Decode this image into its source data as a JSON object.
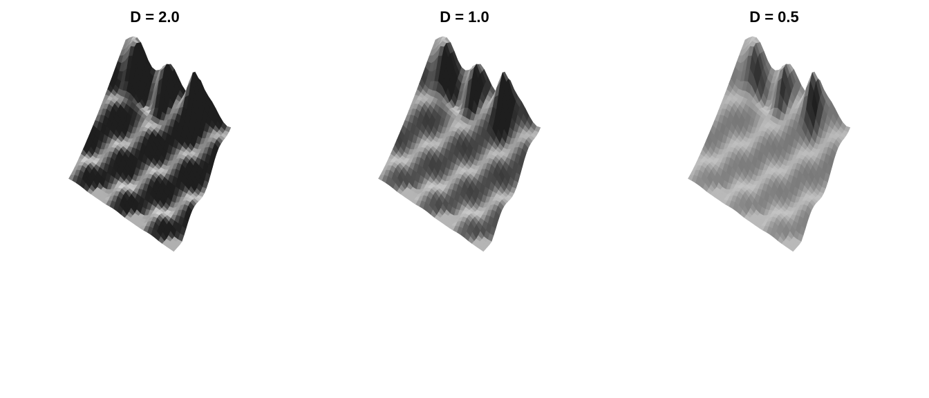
{
  "chart_data": [
    {
      "type": "surface",
      "title": "D = 2.0",
      "shading": "grayscale",
      "background": "#ffffff",
      "grid": false,
      "legend": "none"
    },
    {
      "type": "surface",
      "title": "D = 1.0",
      "shading": "grayscale",
      "background": "#ffffff",
      "grid": false,
      "legend": "none"
    },
    {
      "type": "surface",
      "title": "D = 0.5",
      "shading": "grayscale",
      "background": "#ffffff",
      "grid": false,
      "legend": "none"
    }
  ]
}
